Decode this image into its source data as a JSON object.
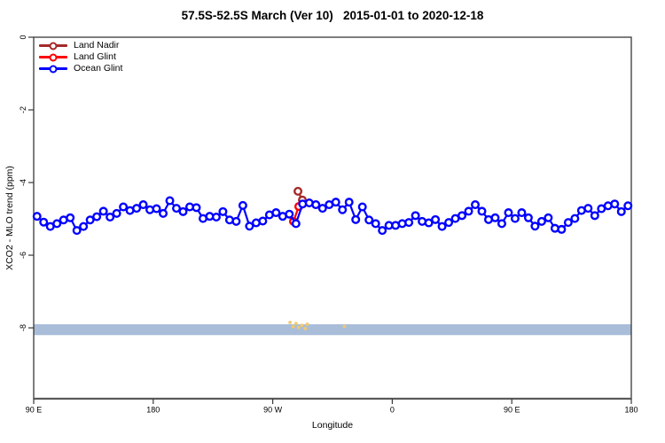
{
  "window": {
    "background": "#ffffff"
  },
  "chart_data": {
    "type": "line",
    "title": "57.5S-52.5S March (Ver 10)   2015-01-01 to 2020-12-18",
    "xlabel": "Longitude",
    "ylabel": "XCO2 - MLO trend (ppm)",
    "grid": "off",
    "legend_position": "top-left-inside",
    "x_axis": {
      "range": [
        90,
        540
      ],
      "ticks": [
        90,
        180,
        270,
        360,
        450,
        540
      ],
      "labels": [
        "90 E",
        "180",
        "90 W",
        "0",
        "90 E",
        "180"
      ],
      "note": "longitude wraps eastward from 90E to 180"
    },
    "y_axis": {
      "range": [
        0,
        -9.95
      ],
      "ticks": [
        0,
        -2,
        -4,
        -6,
        -8
      ],
      "labels": [
        "0",
        "-2",
        "-4",
        "-6",
        "-8"
      ]
    },
    "band": {
      "y_from": -7.9,
      "y_to": -8.2,
      "color": "#a9bdd9",
      "name": "reference-band"
    },
    "series": [
      {
        "name": "Land Nadir",
        "color": "#A52A2A",
        "x": [
          289.0,
          292.3
        ],
        "y": [
          -4.24,
          -4.48
        ]
      },
      {
        "name": "Land Glint",
        "color": "#FF0000",
        "x": [
          285.6,
          289.6
        ],
        "y": [
          -5.07,
          -4.66
        ]
      },
      {
        "name": "Ocean Glint",
        "color": "#0000FF",
        "x_start": 92.5,
        "x_step": 5,
        "y": [
          -4.93,
          -5.09,
          -5.21,
          -5.13,
          -5.03,
          -4.97,
          -5.32,
          -5.21,
          -5.03,
          -4.94,
          -4.79,
          -4.95,
          -4.85,
          -4.67,
          -4.77,
          -4.71,
          -4.61,
          -4.75,
          -4.72,
          -4.85,
          -4.5,
          -4.71,
          -4.8,
          -4.67,
          -4.69,
          -4.99,
          -4.93,
          -4.95,
          -4.8,
          -5.03,
          -5.07,
          -4.63,
          -5.2,
          -5.11,
          -5.06,
          -4.89,
          -4.83,
          -4.93,
          -4.87,
          -5.13,
          -4.59,
          -4.56,
          -4.61,
          -4.71,
          -4.61,
          -4.54,
          -4.75,
          -4.54,
          -5.02,
          -4.67,
          -5.03,
          -5.13,
          -5.32,
          -5.18,
          -5.18,
          -5.13,
          -5.1,
          -4.91,
          -5.07,
          -5.11,
          -5.02,
          -5.21,
          -5.1,
          -4.99,
          -4.91,
          -4.79,
          -4.61,
          -4.79,
          -5.02,
          -4.97,
          -5.13,
          -4.83,
          -4.99,
          -4.83,
          -4.97,
          -5.2,
          -5.07,
          -4.97,
          -5.26,
          -5.29,
          -5.1,
          -4.99,
          -4.77,
          -4.71,
          -4.91,
          -4.72,
          -4.64,
          -4.59,
          -4.8,
          -4.64
        ]
      }
    ],
    "flagged_points": {
      "name": "flagged-soundings",
      "color": "#f3c869",
      "points": [
        [
          283,
          -7.85
        ],
        [
          285.5,
          -7.97
        ],
        [
          287.5,
          -7.88
        ],
        [
          289.5,
          -7.99
        ],
        [
          292,
          -7.93
        ],
        [
          294.5,
          -8.02
        ],
        [
          296,
          -7.9
        ],
        [
          324,
          -7.96
        ]
      ]
    },
    "style": {
      "axis_color": "#383838",
      "bottom_axis_color": "#5a5a5a",
      "marker_radius": 3.8,
      "marker_stroke": 2.4,
      "line_width": 2.2
    }
  }
}
